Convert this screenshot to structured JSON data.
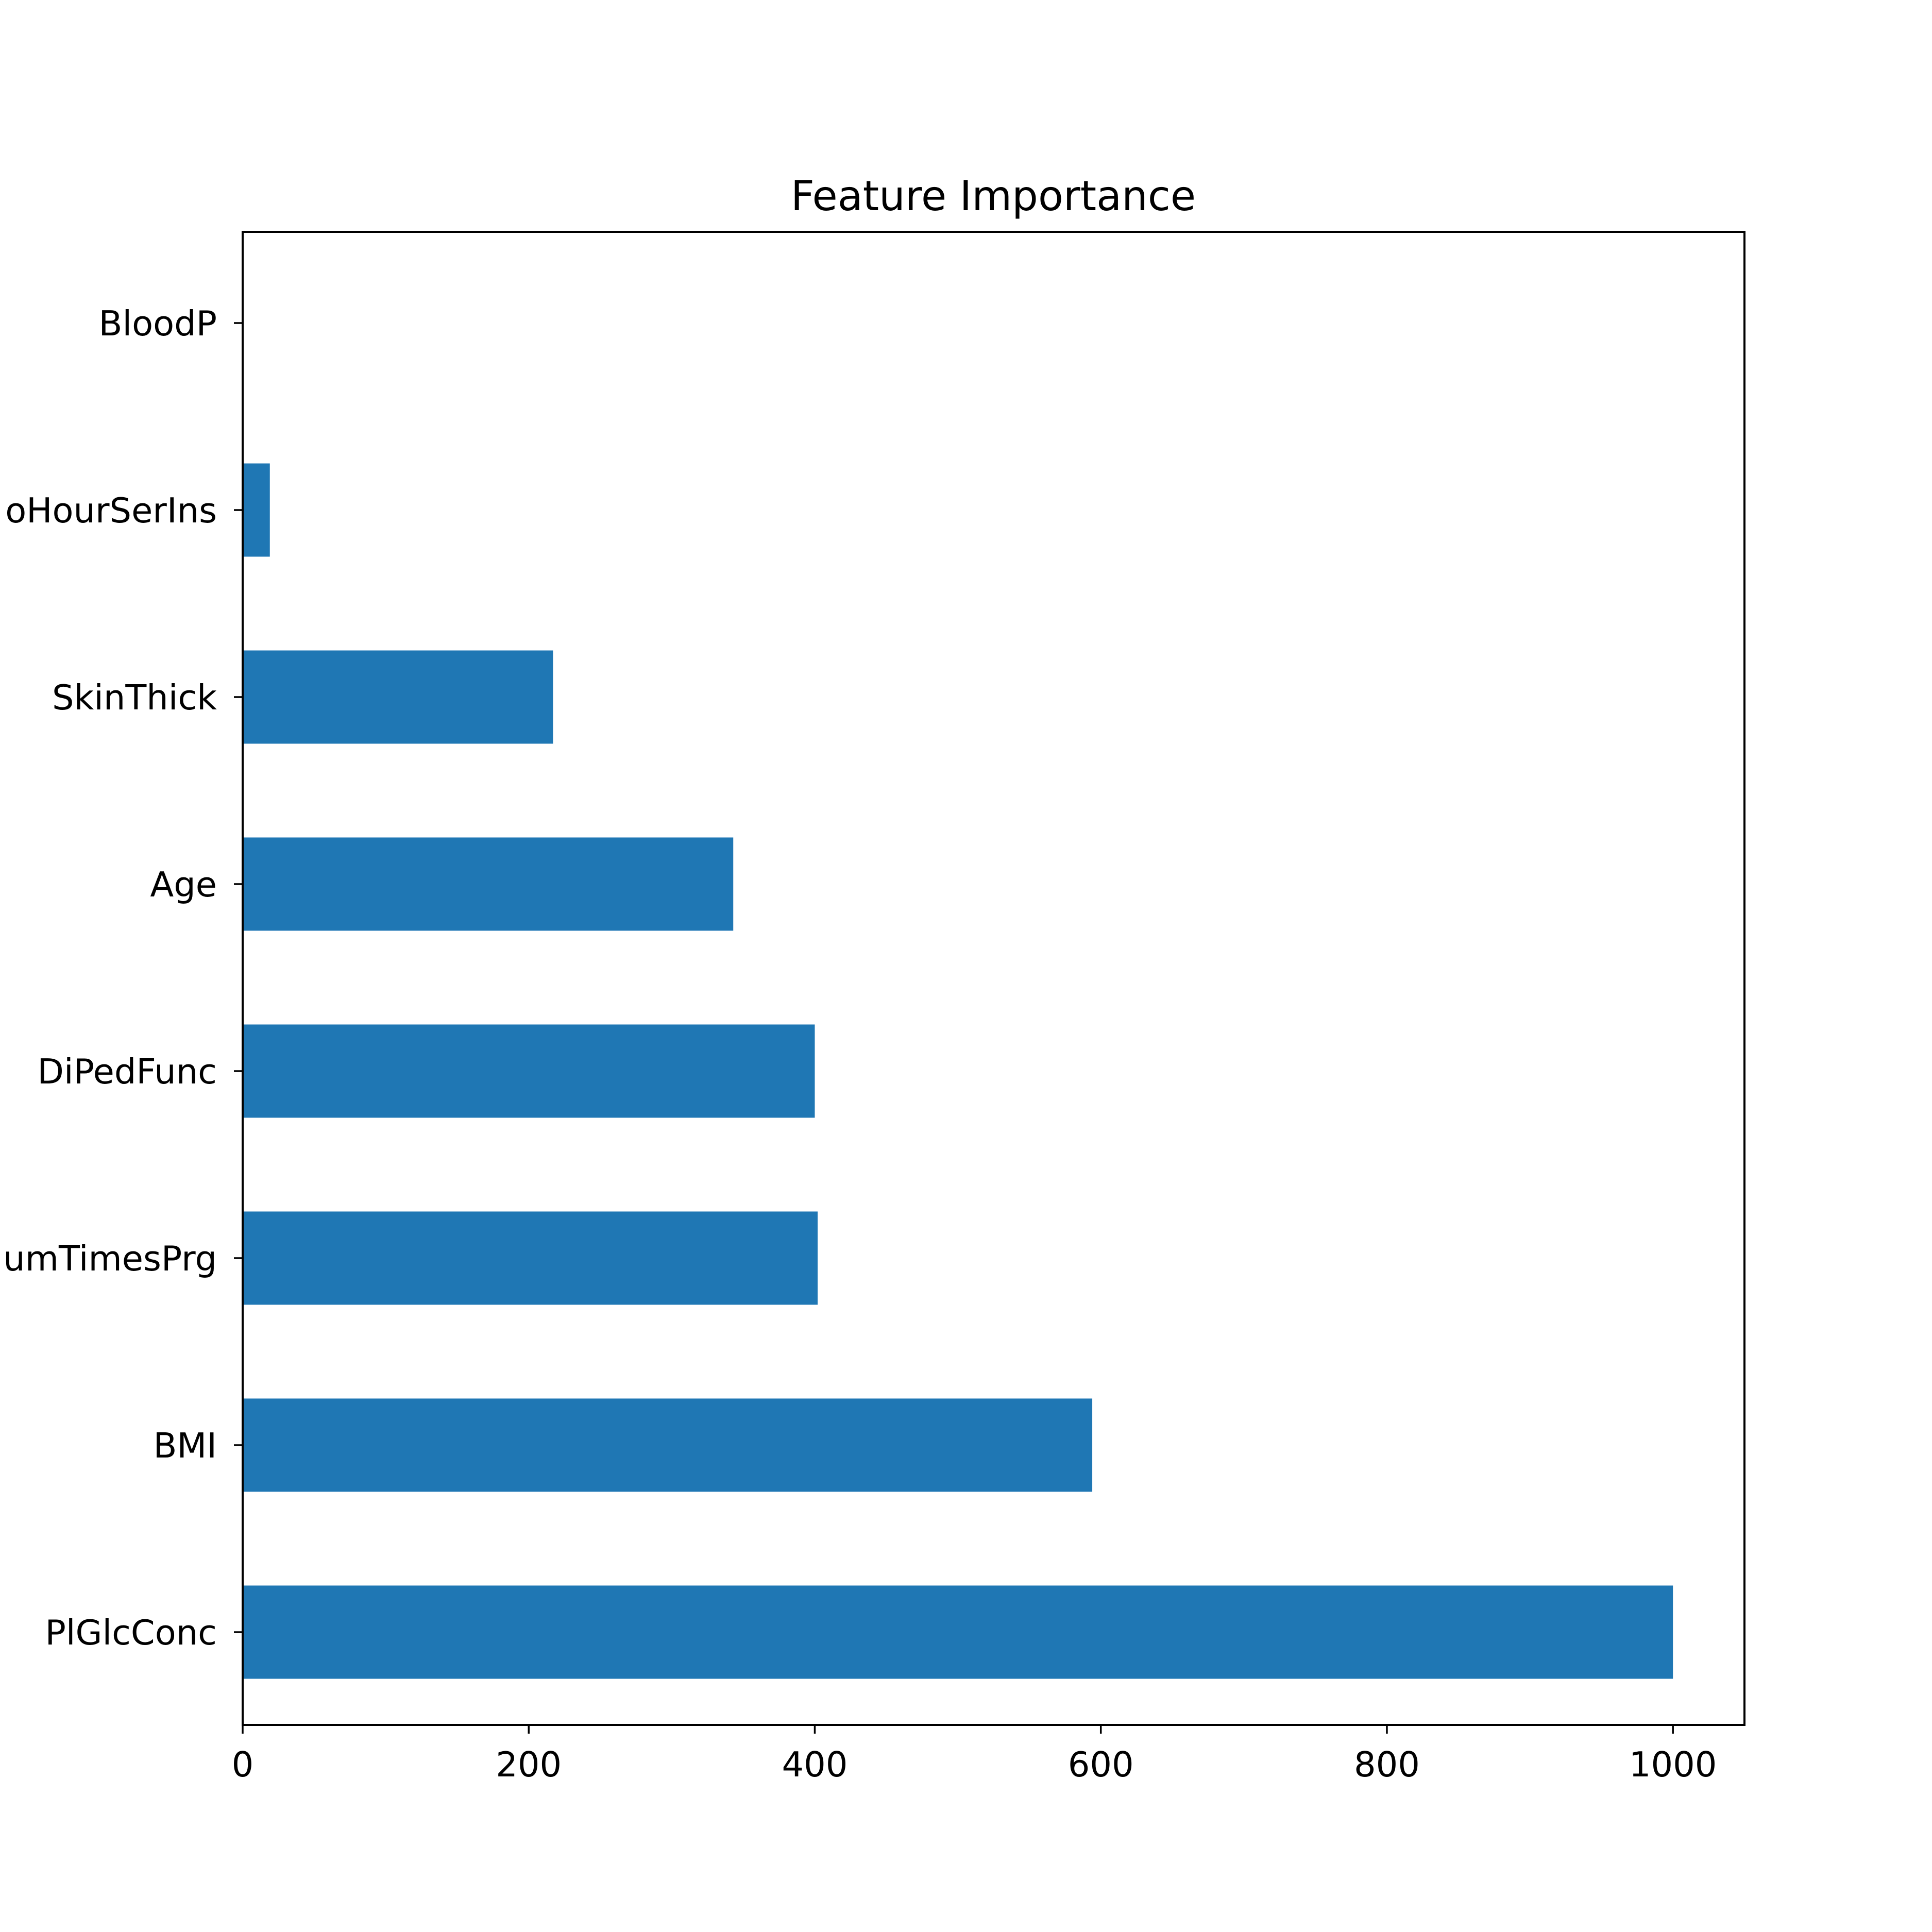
{
  "chart_data": {
    "type": "bar",
    "orientation": "horizontal",
    "title": "Feature Importance",
    "xlabel": "",
    "ylabel": "",
    "categories": [
      "PlGlcConc",
      "BMI",
      "NumTimesPrg",
      "DiPedFunc",
      "Age",
      "SkinThick",
      "TwoHourSerIns",
      "BloodP"
    ],
    "tick_labels": [
      "PlGlcConc",
      "BMI",
      "umTimesPrg",
      "DiPedFunc",
      "Age",
      "SkinThick",
      "oHourSerIns",
      "BloodP"
    ],
    "values": [
      1000,
      594,
      402,
      400,
      343,
      217,
      19,
      0
    ],
    "xlim": [
      0,
      1050
    ],
    "xticks": [
      0,
      200,
      400,
      600,
      800,
      1000
    ],
    "grid": false,
    "legend": "none",
    "bar_color": "#1f77b4"
  }
}
